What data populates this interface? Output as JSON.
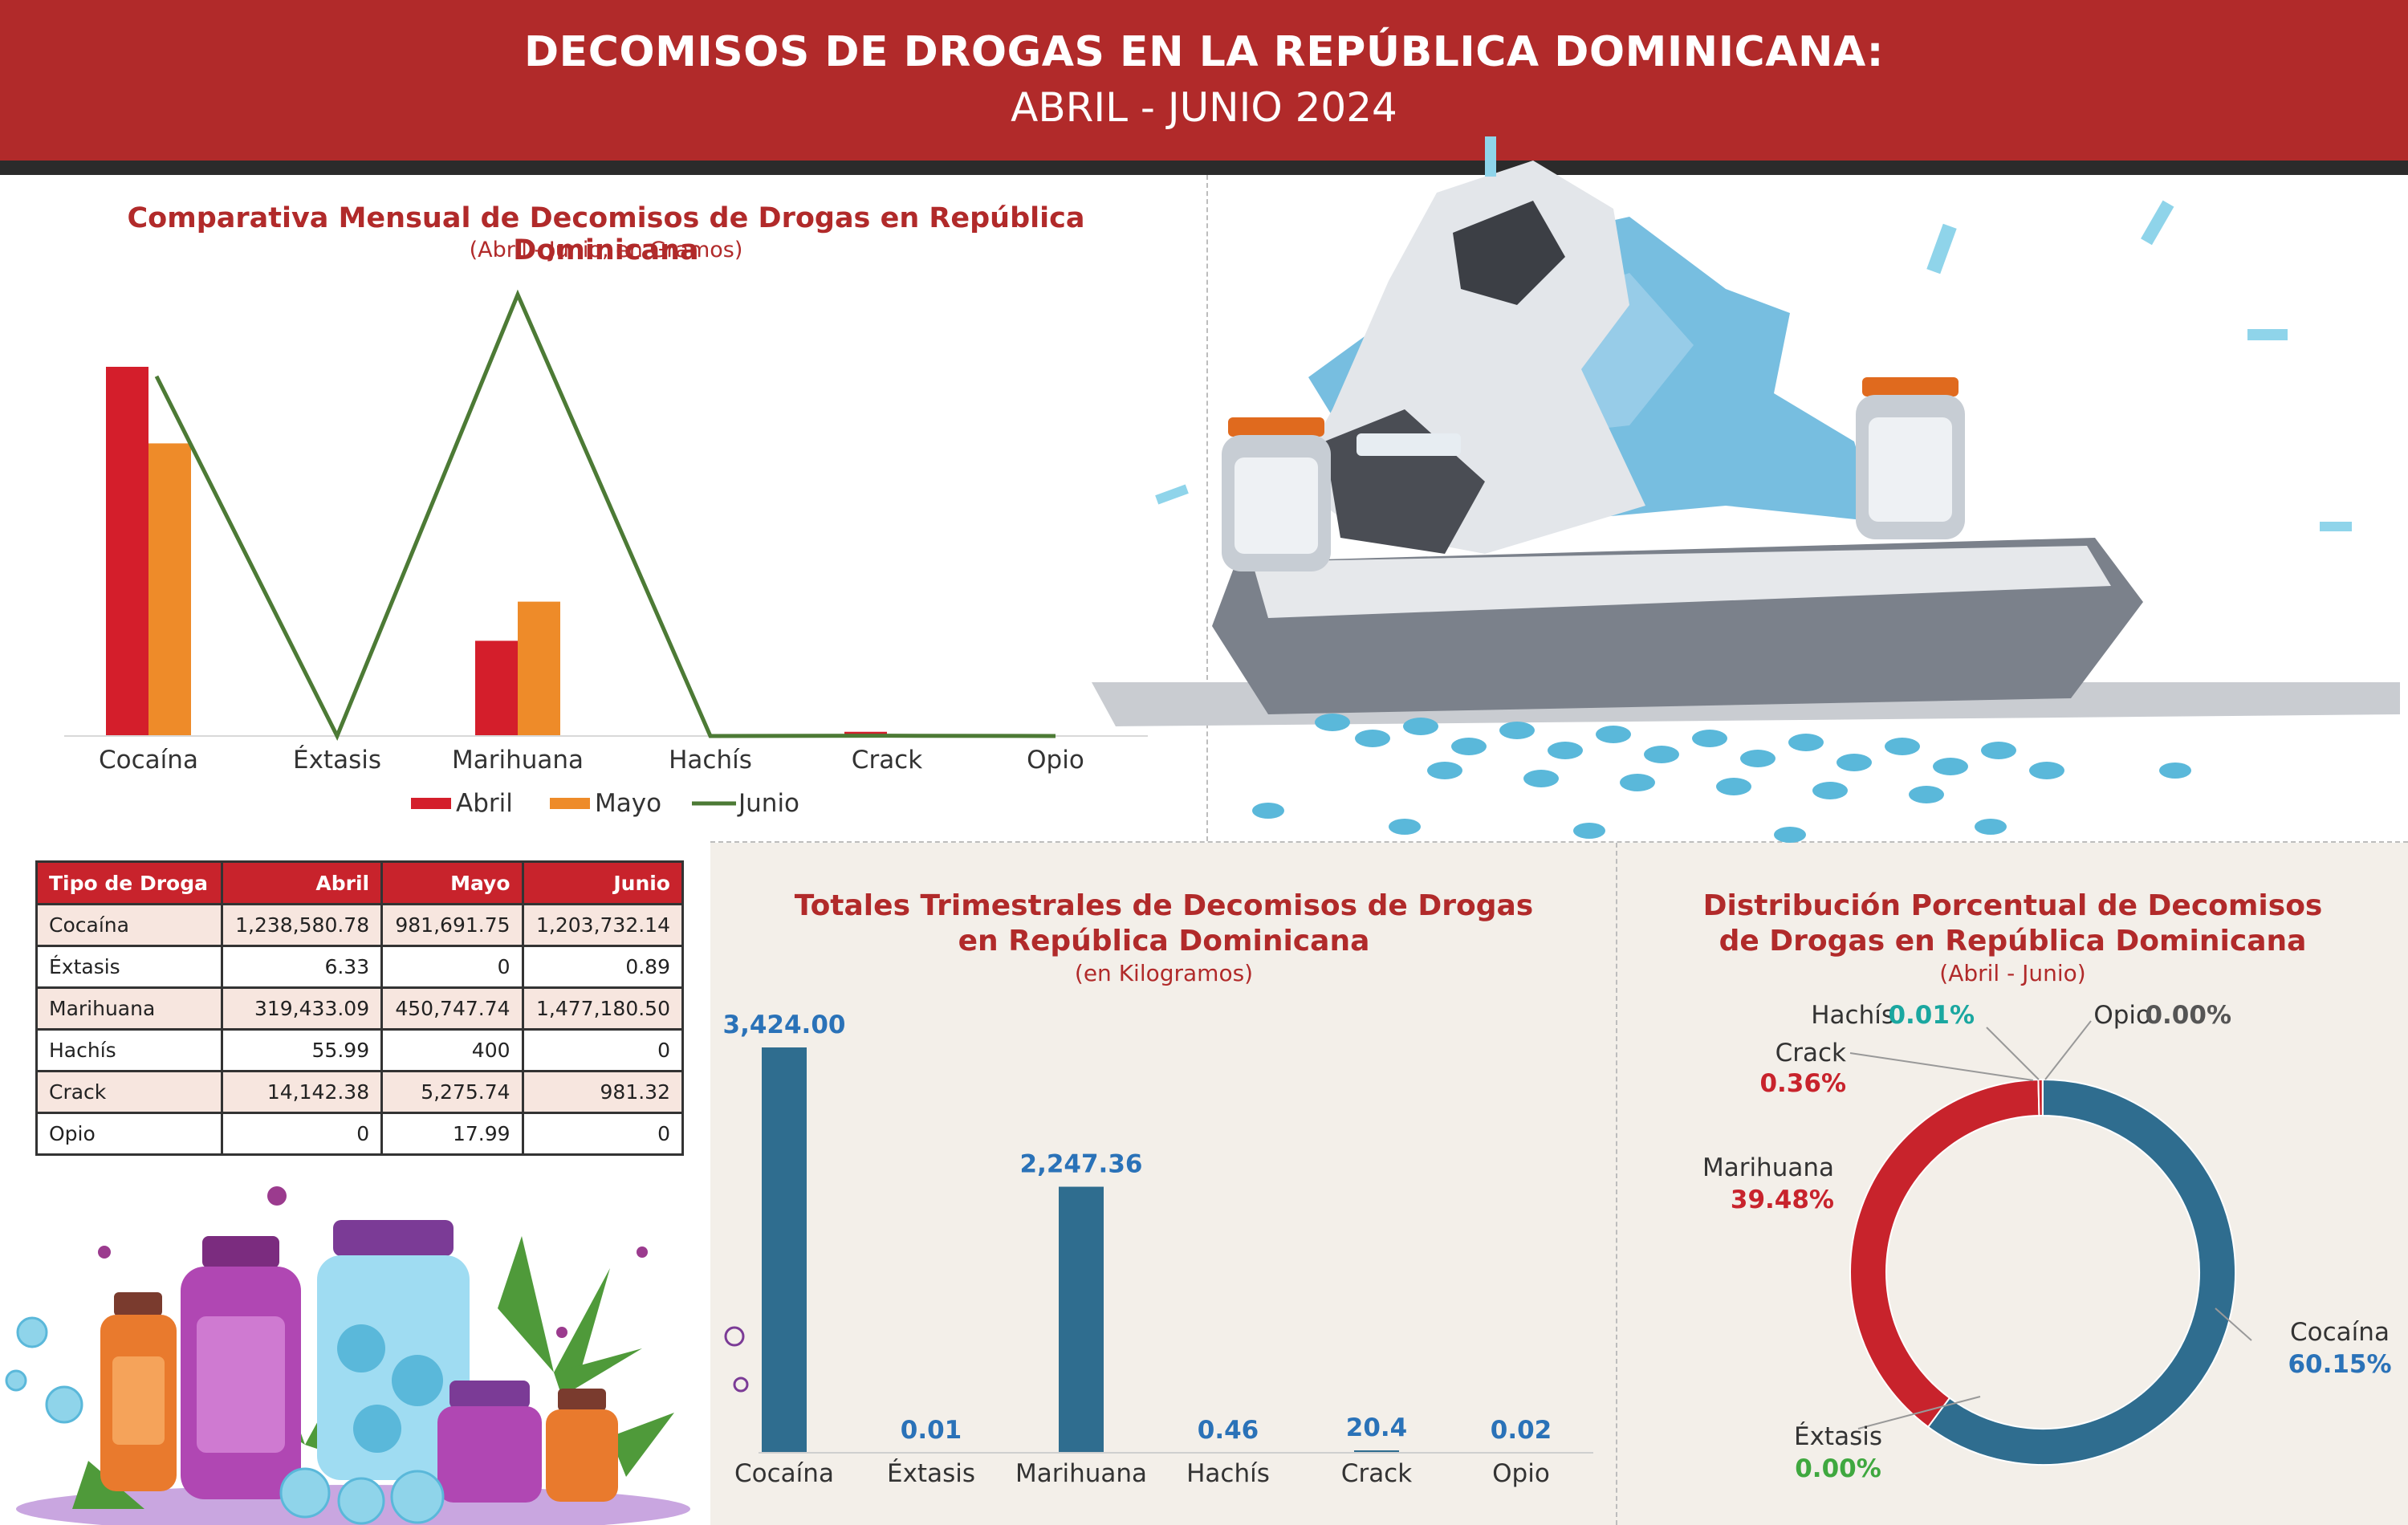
{
  "header": {
    "title": "DECOMISOS DE DROGAS EN LA REPÚBLICA DOMINICANA:",
    "subtitle": "ABRIL - JUNIO 2024"
  },
  "colors": {
    "header_red": "#b12a2a",
    "abril": "#d41e2b",
    "mayo": "#ee8b29",
    "junio": "#4c7a35",
    "blue": "#2f6d8f",
    "donut_red": "#c8232c",
    "label_blue": "#2a72b8",
    "label_green": "#3fa83f",
    "label_teal": "#1aa7a0"
  },
  "icons": {
    "hero": "hooded-person-with-pill-bottles-illustration",
    "decor": "pill-bottles-and-cannabis-leaves-illustration"
  },
  "chart_data": [
    {
      "type": "bar",
      "title": "Comparativa Mensual de Decomisos de Drogas en República Dominicana",
      "subtitle": "(Abril - Junio, en Gramos)",
      "categories": [
        "Cocaína",
        "Éxtasis",
        "Marihuana",
        "Hachís",
        "Crack",
        "Opio"
      ],
      "series": [
        {
          "name": "Abril",
          "type": "bar",
          "values": [
            1238580.78,
            6.33,
            319433.09,
            55.99,
            14142.38,
            0
          ]
        },
        {
          "name": "Mayo",
          "type": "bar",
          "values": [
            981691.75,
            0,
            450747.74,
            400,
            5275.74,
            17.99
          ]
        },
        {
          "name": "Junio",
          "type": "line",
          "values": [
            1203732.14,
            0.89,
            1477180.5,
            0,
            981.32,
            0
          ]
        }
      ],
      "legend": "bottom"
    },
    {
      "type": "table",
      "columns": [
        "Tipo de Droga",
        "Abril",
        "Mayo",
        "Junio"
      ],
      "rows": [
        [
          "Cocaína",
          "1,238,580.78",
          "981,691.75",
          "1,203,732.14"
        ],
        [
          "Éxtasis",
          "6.33",
          "0",
          "0.89"
        ],
        [
          "Marihuana",
          "319,433.09",
          "450,747.74",
          "1,477,180.50"
        ],
        [
          "Hachís",
          "55.99",
          "400",
          "0"
        ],
        [
          "Crack",
          "14,142.38",
          "5,275.74",
          "981.32"
        ],
        [
          "Opio",
          "0",
          "17.99",
          "0"
        ]
      ]
    },
    {
      "type": "bar",
      "title_line1": "Totales Trimestrales de Decomisos de Drogas",
      "title_line2": "en República Dominicana",
      "subtitle": "(en Kilogramos)",
      "categories": [
        "Cocaína",
        "Éxtasis",
        "Marihuana",
        "Hachís",
        "Crack",
        "Opio"
      ],
      "values": [
        3424.0,
        0.01,
        2247.36,
        0.46,
        20.4,
        0.02
      ],
      "labels": [
        "3,424.00",
        "0.01",
        "2,247.36",
        "0.46",
        "20.4",
        "0.02"
      ]
    },
    {
      "type": "pie",
      "title_line1": "Distribución Porcentual de Decomisos",
      "title_line2": "de Drogas en República Dominicana",
      "subtitle": "(Abril - Junio)",
      "slices": [
        {
          "name": "Cocaína",
          "value": 60.15,
          "label": "60.15%"
        },
        {
          "name": "Éxtasis",
          "value": 0.0,
          "label": "0.00%"
        },
        {
          "name": "Marihuana",
          "value": 39.48,
          "label": "39.48%"
        },
        {
          "name": "Crack",
          "value": 0.36,
          "label": "0.36%"
        },
        {
          "name": "Hachís",
          "value": 0.01,
          "label": "0.01%"
        },
        {
          "name": "Opio",
          "value": 0.0,
          "label": "0.00%"
        }
      ]
    }
  ]
}
